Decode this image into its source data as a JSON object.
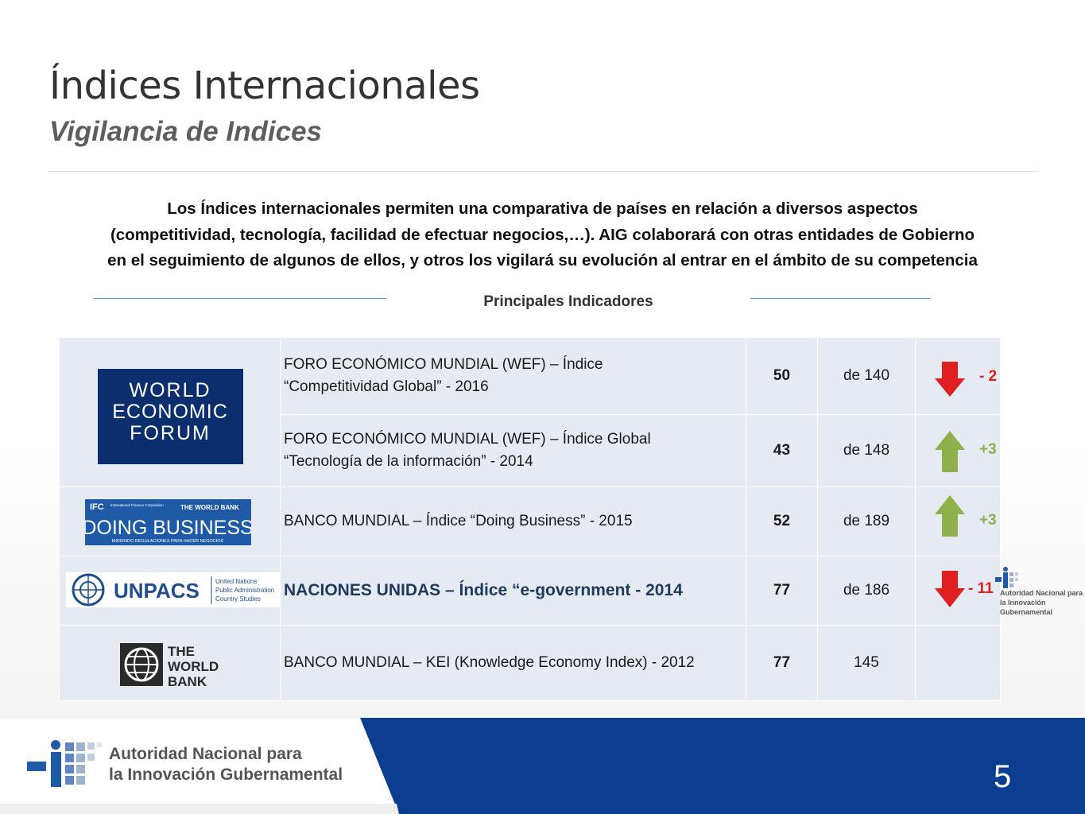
{
  "header": {
    "title": "Índices Internacionales",
    "subtitle": "Vigilancia de Indices"
  },
  "intro": {
    "line1": "Los Índices internacionales permiten una comparativa de países en relación a diversos aspectos",
    "line2": "(competitividad, tecnología, facilidad de efectuar negocios,…). AIG colaborará con otras entidades de Gobierno",
    "line3": "en el seguimiento de algunos de ellos, y otros los vigilará su evolución al entrar en el ámbito de su competencia"
  },
  "section": {
    "title": "Principales Indicadores"
  },
  "rows": [
    {
      "name_line1": "FORO ECONÓMICO MUNDIAL (WEF) – Índice",
      "name_line2": "“Competitividad Global”  - 2016",
      "rank": "50",
      "total": "de 140",
      "delta": "- 2",
      "trend": "down"
    },
    {
      "name_line1": "FORO ECONÓMICO MUNDIAL (WEF) – Índice Global",
      "name_line2": "“Tecnología de la información” - 2014",
      "rank": "43",
      "total": "de 148",
      "delta": "+3",
      "trend": "up"
    },
    {
      "name": "BANCO MUNDIAL – Índice “Doing Business” - 2015",
      "rank": "52",
      "total": "de 189",
      "delta": "+3",
      "trend": "up"
    },
    {
      "name": "NACIONES UNIDAS – Índice “e-government  - 2014",
      "rank": "77",
      "total": "de 186",
      "delta": "- 11",
      "trend": "down"
    },
    {
      "name": "BANCO MUNDIAL – KEI (Knowledge Economy Index) - 2012",
      "rank": "77",
      "total": "145",
      "delta": "",
      "trend": "none"
    }
  ],
  "logos": {
    "wef": {
      "line1": "WORLD",
      "line2": "ECONOMIC",
      "line3": "FORUM"
    },
    "doing_business": {
      "ifc": "IFC",
      "ifc_sub": "International Finance Corporation",
      "wb": "THE WORLD BANK",
      "main": "DOING BUSINESS",
      "tagline": "MIDIENDO REGULACIONES PARA HACER NEGOCIOS"
    },
    "unpacs": {
      "main": "UNPACS",
      "sub1": "United Nations",
      "sub2": "Public Administration",
      "sub3": "Country Studies"
    },
    "world_bank": {
      "line1": "THE",
      "line2": "WORLD",
      "line3": "BANK"
    }
  },
  "brand": {
    "line1": "Autoridad Nacional para",
    "line2": "la Innovación Gubernamental"
  },
  "page_number": "5",
  "colors": {
    "footer_blue": "#0b3d91",
    "arrow_red": "#e02020",
    "arrow_green": "#8fb04a",
    "wef_blue": "#0a2e6e",
    "db_blue": "#1f5aa6"
  }
}
